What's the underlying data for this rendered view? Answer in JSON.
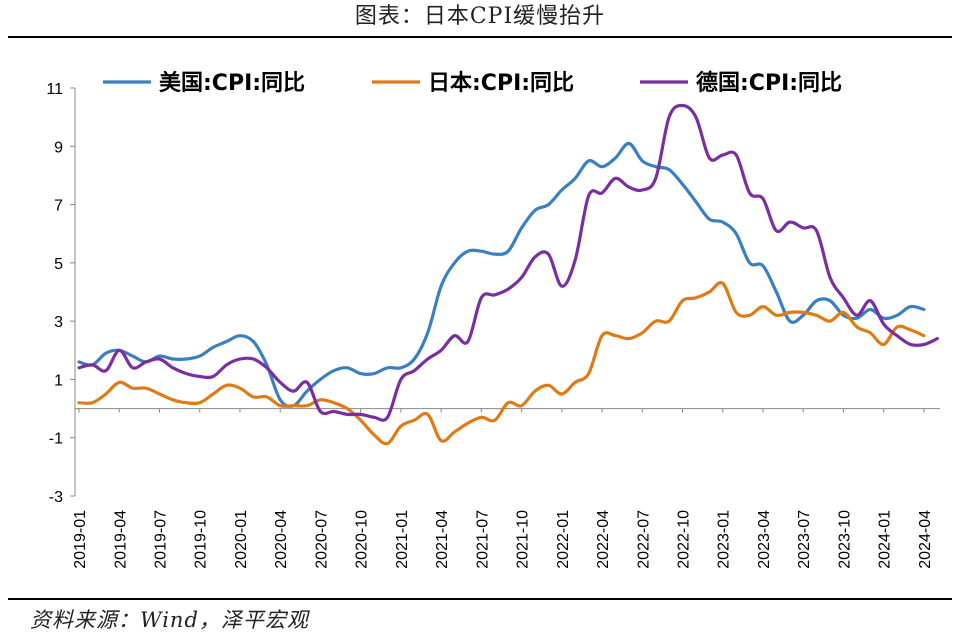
{
  "title": "图表：日本CPI缓慢抬升",
  "source": "资料来源：Wind，泽平宏观",
  "chart_data": {
    "type": "line",
    "ylim": [
      -3,
      11
    ],
    "yticks": [
      -3,
      -1,
      1,
      3,
      5,
      7,
      9,
      11
    ],
    "grid": false,
    "legend_position": "top",
    "x": [
      "2019-01",
      "2019-02",
      "2019-03",
      "2019-04",
      "2019-05",
      "2019-06",
      "2019-07",
      "2019-08",
      "2019-09",
      "2019-10",
      "2019-11",
      "2019-12",
      "2020-01",
      "2020-02",
      "2020-03",
      "2020-04",
      "2020-05",
      "2020-06",
      "2020-07",
      "2020-08",
      "2020-09",
      "2020-10",
      "2020-11",
      "2020-12",
      "2021-01",
      "2021-02",
      "2021-03",
      "2021-04",
      "2021-05",
      "2021-06",
      "2021-07",
      "2021-08",
      "2021-09",
      "2021-10",
      "2021-11",
      "2021-12",
      "2022-01",
      "2022-02",
      "2022-03",
      "2022-04",
      "2022-05",
      "2022-06",
      "2022-07",
      "2022-08",
      "2022-09",
      "2022-10",
      "2022-11",
      "2022-12",
      "2023-01",
      "2023-02",
      "2023-03",
      "2023-04",
      "2023-05",
      "2023-06",
      "2023-07",
      "2023-08",
      "2023-09",
      "2023-10",
      "2023-11",
      "2023-12",
      "2024-01",
      "2024-02",
      "2024-03",
      "2024-04",
      "2024-05"
    ],
    "xtick_labels": [
      "2019-01",
      "2019-04",
      "2019-07",
      "2019-10",
      "2020-01",
      "2020-04",
      "2020-07",
      "2020-10",
      "2021-01",
      "2021-04",
      "2021-07",
      "2021-10",
      "2022-01",
      "2022-04",
      "2022-07",
      "2022-10",
      "2023-01",
      "2023-04",
      "2023-07",
      "2023-10",
      "2024-01",
      "2024-04"
    ],
    "series": [
      {
        "name": "美国:CPI:同比",
        "color": "#3a7fc2",
        "values": [
          1.6,
          1.5,
          1.9,
          2.0,
          1.8,
          1.6,
          1.8,
          1.7,
          1.7,
          1.8,
          2.1,
          2.3,
          2.5,
          2.3,
          1.5,
          0.3,
          0.1,
          0.6,
          1.0,
          1.3,
          1.4,
          1.2,
          1.2,
          1.4,
          1.4,
          1.7,
          2.6,
          4.2,
          5.0,
          5.4,
          5.4,
          5.3,
          5.4,
          6.2,
          6.8,
          7.0,
          7.5,
          7.9,
          8.5,
          8.3,
          8.6,
          9.1,
          8.5,
          8.3,
          8.2,
          7.7,
          7.1,
          6.5,
          6.4,
          6.0,
          5.0,
          4.9,
          4.0,
          3.0,
          3.2,
          3.7,
          3.7,
          3.2,
          3.1,
          3.4,
          3.1,
          3.2,
          3.5,
          3.4,
          null
        ]
      },
      {
        "name": "日本:CPI:同比",
        "color": "#e07a15",
        "values": [
          0.2,
          0.2,
          0.5,
          0.9,
          0.7,
          0.7,
          0.5,
          0.3,
          0.2,
          0.2,
          0.5,
          0.8,
          0.7,
          0.4,
          0.4,
          0.1,
          0.1,
          0.1,
          0.3,
          0.2,
          0.0,
          -0.4,
          -0.9,
          -1.2,
          -0.6,
          -0.4,
          -0.2,
          -1.1,
          -0.8,
          -0.5,
          -0.3,
          -0.4,
          0.2,
          0.1,
          0.6,
          0.8,
          0.5,
          0.9,
          1.2,
          2.5,
          2.5,
          2.4,
          2.6,
          3.0,
          3.0,
          3.7,
          3.8,
          4.0,
          4.3,
          3.3,
          3.2,
          3.5,
          3.2,
          3.3,
          3.3,
          3.2,
          3.0,
          3.3,
          2.8,
          2.6,
          2.2,
          2.8,
          2.7,
          2.5,
          null
        ]
      },
      {
        "name": "德国:CPI:同比",
        "color": "#7a2fa0",
        "values": [
          1.4,
          1.5,
          1.3,
          2.0,
          1.4,
          1.6,
          1.7,
          1.4,
          1.2,
          1.1,
          1.1,
          1.5,
          1.7,
          1.7,
          1.4,
          0.9,
          0.6,
          0.9,
          -0.1,
          -0.1,
          -0.2,
          -0.2,
          -0.3,
          -0.3,
          1.0,
          1.3,
          1.7,
          2.0,
          2.5,
          2.3,
          3.8,
          3.9,
          4.1,
          4.5,
          5.2,
          5.3,
          4.2,
          5.1,
          7.3,
          7.4,
          7.9,
          7.6,
          7.5,
          7.9,
          10.0,
          10.4,
          10.0,
          8.6,
          8.7,
          8.7,
          7.4,
          7.2,
          6.1,
          6.4,
          6.2,
          6.1,
          4.5,
          3.8,
          3.2,
          3.7,
          2.9,
          2.5,
          2.2,
          2.2,
          2.4
        ]
      }
    ]
  }
}
